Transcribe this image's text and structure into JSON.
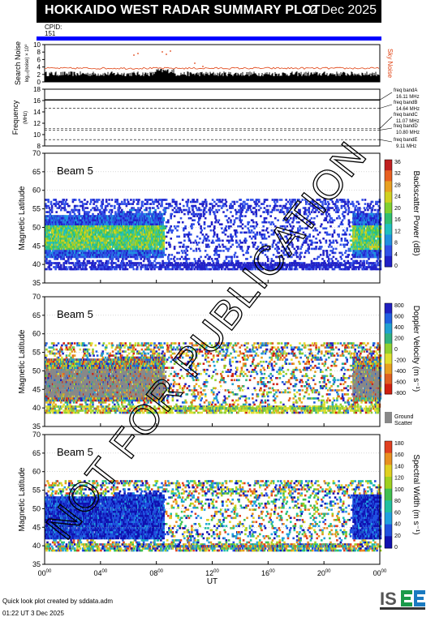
{
  "header": {
    "title": "HOKKAIDO WEST RADAR SUMMARY PLOT",
    "date": "2 Dec 2025"
  },
  "cpid": {
    "label": "CPID:",
    "value": "151"
  },
  "noise_panel": {
    "ylabel": "Search Noise",
    "ylabel_sub": "log₁₀(noise) × 10⁰",
    "sky_label": "Sky Noise",
    "ticks": [
      "0",
      "2",
      "4",
      "6",
      "8",
      "10"
    ]
  },
  "freq_panel": {
    "ylabel": "Frequency",
    "ylabel_sub": "(MHz)",
    "ticks": [
      "8",
      "10",
      "12",
      "14",
      "16",
      "18"
    ],
    "bands": [
      {
        "name": "freq bandA",
        "value": "16.11 MHz"
      },
      {
        "name": "freq bandB",
        "value": "14.64 MHz"
      },
      {
        "name": "freq bandC",
        "value": "11.07 MHz"
      },
      {
        "name": "freq bandD",
        "value": "10.80 MHz"
      },
      {
        "name": "freq bandE",
        "value": "9.11 MHz"
      }
    ]
  },
  "panels": [
    {
      "beam": "Beam  5",
      "ylabel": "Magnetic Latitude",
      "cbar_label": "Backscatter Power (dB)",
      "cbar_ticks": [
        "0",
        "4",
        "8",
        "12",
        "16",
        "20",
        "24",
        "28",
        "32",
        "36"
      ]
    },
    {
      "beam": "Beam  5",
      "ylabel": "Magnetic Latitude",
      "cbar_label": "Doppler Velocity (m s⁻¹)",
      "cbar_ticks": [
        "-800",
        "-600",
        "-400",
        "-200",
        "0",
        "200",
        "400",
        "600",
        "800"
      ],
      "ground_scatter": "Ground Scatter"
    },
    {
      "beam": "Beam  5",
      "ylabel": "Magnetic Latitude",
      "cbar_label": "Spectral Width (m s⁻¹)",
      "cbar_ticks": [
        "0",
        "20",
        "40",
        "60",
        "80",
        "100",
        "120",
        "140",
        "160",
        "180"
      ]
    }
  ],
  "lat_ticks": [
    "35",
    "40",
    "45",
    "50",
    "55",
    "60",
    "65",
    "70"
  ],
  "x_axis": {
    "label": "UT",
    "ticks": [
      "00",
      "04",
      "08",
      "12",
      "16",
      "20",
      "00"
    ],
    "tick_suffix": "00"
  },
  "footer": {
    "line1": "Quick look plot created by sddata.adm",
    "line2": "01:22 UT  3 Dec 2025"
  },
  "logo": {
    "text": "ISEE"
  },
  "watermark": "NOT FOR PUBLICATION",
  "colors": {
    "header_bg": "#000000",
    "cpid_bar": "#0000ff",
    "noise_search": "#000000",
    "noise_sky": "#e04010",
    "ground_scatter": "#888888"
  },
  "chart_data": {
    "type": "heatmap",
    "x_range_hours": [
      0,
      24
    ],
    "lat_range": [
      35,
      70
    ],
    "freq_bands_mhz": [
      16.11,
      14.64,
      11.07,
      10.8,
      9.11
    ],
    "noise_ylim": [
      0,
      10
    ],
    "freq_ylim": [
      8,
      18
    ],
    "power_range_db": [
      0,
      36
    ],
    "velocity_range": [
      -800,
      800
    ],
    "width_range": [
      0,
      180
    ]
  }
}
